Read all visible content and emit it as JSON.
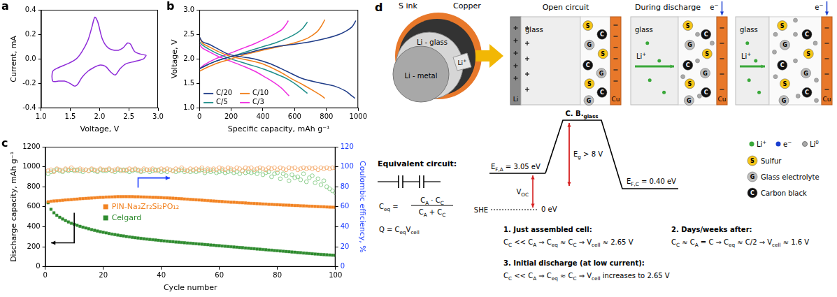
{
  "chart_data": [
    {
      "panel": "a",
      "type": "line",
      "xlabel": "Voltage, V",
      "ylabel": "Current, mA",
      "xlim": [
        1,
        3
      ],
      "ylim": [
        -0.4,
        0.4
      ],
      "xticks": [
        {
          "value": 1,
          "label": "1.0"
        },
        1.5,
        {
          "value": 2,
          "label": "2.0"
        },
        2.5,
        {
          "value": 3,
          "label": "3.0"
        }
      ],
      "yticks": [
        -0.4,
        -0.2,
        {
          "value": 0,
          "label": "0.0"
        },
        0.2,
        0.4
      ],
      "grid": false,
      "series": [
        {
          "color": "#8e2bd8",
          "line_style": "solid",
          "marker": "none",
          "x": [
            2.8,
            2.75,
            2.6,
            2.45,
            2.35,
            2.27,
            2.2,
            2.1,
            2.0,
            1.9,
            1.8,
            1.7,
            1.62,
            1.57,
            1.5,
            1.4,
            1.3,
            1.2,
            1.2,
            1.3,
            1.45,
            1.6,
            1.7,
            1.8,
            1.87,
            1.92,
            1.97,
            2.05,
            2.15,
            2.3,
            2.4,
            2.48,
            2.53,
            2.6,
            2.7,
            2.8
          ],
          "values": [
            0.03,
            0.0,
            -0.02,
            -0.04,
            -0.08,
            -0.13,
            -0.11,
            -0.06,
            -0.05,
            -0.07,
            -0.1,
            -0.15,
            -0.21,
            -0.22,
            -0.2,
            -0.18,
            -0.18,
            -0.18,
            -0.1,
            -0.07,
            -0.04,
            0.0,
            0.06,
            0.15,
            0.26,
            0.34,
            0.3,
            0.16,
            0.09,
            0.07,
            0.09,
            0.13,
            0.12,
            0.06,
            0.04,
            0.03
          ]
        }
      ]
    },
    {
      "panel": "b",
      "type": "line",
      "xlabel": "Specific capacity, mAh g⁻¹",
      "ylabel": "Voltage, V",
      "xlim": [
        0,
        1000
      ],
      "ylim": [
        1,
        3
      ],
      "xticks": [
        0,
        200,
        400,
        600,
        800,
        1000
      ],
      "yticks": [
        {
          "value": 1,
          "label": "1.0"
        },
        1.5,
        {
          "value": 2,
          "label": "2.0"
        },
        2.5,
        {
          "value": 3,
          "label": "3.0"
        }
      ],
      "grid": false,
      "legend": "lower left",
      "series": [
        {
          "name": "C/20",
          "color": "#1f3c88",
          "line_style": "solid",
          "marker": "none",
          "x": [
            0,
            20,
            60,
            120,
            180,
            250,
            350,
            450,
            550,
            650,
            750,
            850,
            920,
            960,
            980,
            null,
            0,
            30,
            100,
            200,
            300,
            400,
            500,
            600,
            700,
            800,
            880,
            930,
            960,
            975,
            985
          ],
          "values": [
            2.45,
            2.35,
            2.3,
            2.2,
            2.1,
            2.05,
            2.0,
            1.9,
            1.75,
            1.6,
            1.52,
            1.45,
            1.35,
            1.25,
            1.2,
            null,
            1.8,
            1.85,
            1.95,
            2.05,
            2.12,
            2.2,
            2.26,
            2.3,
            2.35,
            2.42,
            2.5,
            2.58,
            2.65,
            2.72,
            2.78
          ]
        },
        {
          "name": "C/10",
          "color": "#f07f1a",
          "line_style": "solid",
          "marker": "none",
          "x": [
            0,
            20,
            60,
            120,
            200,
            300,
            400,
            500,
            580,
            650,
            720,
            770,
            790,
            null,
            0,
            30,
            100,
            200,
            300,
            400,
            500,
            600,
            680,
            740,
            770,
            790
          ],
          "values": [
            2.45,
            2.32,
            2.25,
            2.15,
            2.05,
            1.98,
            1.9,
            1.75,
            1.6,
            1.48,
            1.35,
            1.25,
            1.2,
            null,
            1.75,
            1.8,
            1.9,
            2.0,
            2.1,
            2.18,
            2.25,
            2.33,
            2.42,
            2.55,
            2.68,
            2.8
          ]
        },
        {
          "name": "C/5",
          "color": "#1f8f8a",
          "line_style": "solid",
          "marker": "none",
          "x": [
            0,
            20,
            60,
            120,
            200,
            300,
            400,
            480,
            550,
            610,
            650,
            680,
            null,
            0,
            30,
            100,
            200,
            300,
            400,
            480,
            550,
            610,
            650,
            680
          ],
          "values": [
            2.35,
            2.28,
            2.2,
            2.1,
            2.0,
            1.9,
            1.8,
            1.7,
            1.6,
            1.48,
            1.38,
            1.3,
            null,
            1.8,
            1.85,
            1.95,
            2.05,
            2.15,
            2.25,
            2.33,
            2.42,
            2.52,
            2.62,
            2.75
          ]
        },
        {
          "name": "C/3",
          "color": "#ee2ee0",
          "line_style": "solid",
          "marker": "none",
          "x": [
            0,
            20,
            60,
            120,
            200,
            280,
            350,
            420,
            480,
            520,
            550,
            565,
            null,
            0,
            30,
            100,
            180,
            260,
            340,
            420,
            480,
            520,
            545,
            560
          ],
          "values": [
            2.3,
            2.22,
            2.15,
            2.05,
            1.95,
            1.85,
            1.75,
            1.62,
            1.5,
            1.4,
            1.3,
            1.25,
            null,
            1.8,
            1.88,
            2.0,
            2.1,
            2.2,
            2.3,
            2.42,
            2.52,
            2.6,
            2.7,
            2.78
          ]
        }
      ]
    },
    {
      "panel": "c",
      "type": "scatter",
      "xlabel": "Cycle number",
      "ylabel": "Discharge capacity, mAh g⁻¹",
      "y2label": "Coulombic efficiency, %",
      "xlim": [
        0,
        100
      ],
      "ylim": [
        0,
        1200
      ],
      "y2lim": [
        0,
        120
      ],
      "xticks": [
        0,
        20,
        40,
        60,
        80,
        100
      ],
      "yticks": [
        0,
        200,
        400,
        600,
        800,
        1000,
        1200
      ],
      "y2ticks": [
        0,
        20,
        40,
        60,
        80,
        100,
        120
      ],
      "grid": false,
      "legend": "center",
      "x": [
        1,
        2,
        3,
        4,
        5,
        6,
        7,
        8,
        9,
        10,
        11,
        12,
        13,
        14,
        15,
        16,
        17,
        18,
        19,
        20,
        21,
        22,
        23,
        24,
        25,
        26,
        27,
        28,
        29,
        30,
        31,
        32,
        33,
        34,
        35,
        36,
        37,
        38,
        39,
        40,
        41,
        42,
        43,
        44,
        45,
        46,
        47,
        48,
        49,
        50,
        51,
        52,
        53,
        54,
        55,
        56,
        57,
        58,
        59,
        60,
        61,
        62,
        63,
        64,
        65,
        66,
        67,
        68,
        69,
        70,
        71,
        72,
        73,
        74,
        75,
        76,
        77,
        78,
        79,
        80,
        81,
        82,
        83,
        84,
        85,
        86,
        87,
        88,
        89,
        90,
        91,
        92,
        93,
        94,
        95,
        96,
        97,
        98,
        99,
        100
      ],
      "series": [
        {
          "name": "PIN-Na₃Zr₂Si₂PO₁₂",
          "color": "#f28322",
          "marker": "square",
          "values": [
            650,
            655,
            658,
            660,
            662,
            665,
            668,
            670,
            672,
            675,
            677,
            680,
            682,
            684,
            686,
            688,
            690,
            692,
            694,
            695,
            697,
            698,
            699,
            700,
            701,
            701,
            702,
            702,
            701,
            701,
            700,
            700,
            699,
            698,
            697,
            696,
            695,
            694,
            693,
            692,
            690,
            689,
            687,
            686,
            684,
            682,
            680,
            678,
            676,
            674,
            672,
            670,
            668,
            666,
            664,
            662,
            660,
            658,
            656,
            654,
            652,
            650,
            648,
            646,
            645,
            643,
            641,
            640,
            638,
            636,
            634,
            633,
            631,
            630,
            628,
            627,
            625,
            624,
            622,
            621,
            620,
            618,
            617,
            616,
            614,
            613,
            612,
            610,
            609,
            608,
            606,
            605,
            604,
            602,
            601,
            600,
            598,
            597,
            596,
            595
          ]
        },
        {
          "name": "Celgard",
          "color": "#2e8b2e",
          "marker": "square",
          "values": [
            640,
            575,
            540,
            515,
            495,
            478,
            462,
            448,
            435,
            425,
            415,
            405,
            396,
            388,
            380,
            372,
            365,
            358,
            351,
            345,
            339,
            333,
            327,
            322,
            317,
            312,
            308,
            303,
            299,
            295,
            291,
            287,
            284,
            280,
            277,
            274,
            271,
            268,
            265,
            262,
            259,
            256,
            253,
            251,
            248,
            246,
            243,
            241,
            238,
            236,
            233,
            231,
            228,
            226,
            223,
            221,
            218,
            216,
            213,
            211,
            208,
            206,
            203,
            201,
            198,
            196,
            193,
            191,
            188,
            186,
            183,
            181,
            178,
            176,
            173,
            171,
            168,
            166,
            163,
            161,
            158,
            156,
            153,
            151,
            148,
            146,
            143,
            141,
            138,
            136,
            133,
            131,
            128,
            126,
            124,
            122,
            120,
            118,
            116,
            115
          ]
        },
        {
          "color": "#f5b27a",
          "marker": "circle_open",
          "axis": "y2",
          "values": [
            96,
            97,
            95,
            98,
            97,
            96,
            98,
            97,
            99,
            97,
            96,
            98,
            97,
            97,
            96,
            98,
            97,
            96,
            98,
            97,
            97,
            98,
            96,
            97,
            98,
            97,
            96,
            97,
            98,
            97,
            98,
            97,
            96,
            98,
            97,
            97,
            98,
            96,
            97,
            98,
            97,
            98,
            97,
            96,
            98,
            97,
            99,
            97,
            96,
            98,
            97,
            98,
            97,
            99,
            96,
            98,
            97,
            98,
            97,
            99,
            98,
            97,
            99,
            98,
            97,
            99,
            98,
            96,
            99,
            98,
            99,
            97,
            98,
            99,
            98,
            97,
            99,
            98,
            99,
            97,
            99,
            98,
            97,
            99,
            98,
            99,
            97,
            98,
            99,
            98,
            99,
            98,
            99,
            97,
            99,
            98,
            99,
            98,
            99,
            99
          ]
        },
        {
          "color": "#8fcf8f",
          "marker": "circle_open",
          "axis": "y2",
          "values": [
            93,
            95,
            96,
            97,
            96,
            95,
            97,
            96,
            97,
            96,
            97,
            96,
            95,
            97,
            96,
            97,
            96,
            95,
            97,
            96,
            96,
            97,
            96,
            95,
            97,
            96,
            97,
            96,
            95,
            96,
            97,
            96,
            95,
            96,
            97,
            95,
            96,
            97,
            96,
            95,
            96,
            95,
            97,
            96,
            95,
            96,
            97,
            95,
            96,
            95,
            96,
            95,
            96,
            97,
            94,
            96,
            95,
            96,
            94,
            95,
            96,
            94,
            95,
            96,
            94,
            95,
            93,
            96,
            94,
            95,
            94,
            95,
            93,
            96,
            92,
            94,
            95,
            90,
            93,
            94,
            88,
            93,
            91,
            86,
            92,
            89,
            90,
            87,
            93,
            85,
            89,
            91,
            84,
            88,
            82,
            86,
            80,
            78,
            76,
            74
          ]
        }
      ]
    }
  ],
  "diagram": {
    "panel": "d",
    "cell": {
      "ink": "S ink",
      "current_collector": "Copper",
      "electrolyte": "Li - glass",
      "anode": "Li - metal",
      "ion": [
        "Li",
        {
          "sup": "+"
        }
      ]
    },
    "stages": {
      "open": "Open circuit",
      "discharge": "During discharge",
      "electrolyte": "glass",
      "anode": "Li",
      "cathode": "Cu",
      "ion": [
        "Li",
        {
          "sup": "+"
        }
      ],
      "electron": [
        "e",
        {
          "sup": "−"
        }
      ]
    },
    "circuit": {
      "title": "Equivalent circuit:",
      "lhs": [
        "C",
        {
          "sub": "eq"
        },
        " ="
      ],
      "numerator": [
        "C",
        {
          "sub": "A"
        },
        " · C",
        {
          "sub": "C"
        }
      ],
      "denominator": [
        "C",
        {
          "sub": "A"
        },
        " + C",
        {
          "sub": "C"
        }
      ],
      "charge": [
        "Q = C",
        {
          "sub": "eq"
        },
        "V",
        {
          "sub": "cell"
        }
      ]
    },
    "energy": {
      "band": [
        "C. B.",
        {
          "sub": "glass"
        }
      ],
      "anode_level": [
        "E",
        {
          "sub": "F,A"
        },
        " = 3.05 eV"
      ],
      "voltage": [
        "V",
        {
          "sub": "OC"
        }
      ],
      "reference": "SHE",
      "zero": "0 eV",
      "gap": [
        "E",
        {
          "sub": "g"
        },
        " > 8 V"
      ],
      "cathode_level": [
        "E",
        {
          "sub": "F,C"
        },
        " = 0.40 eV"
      ]
    },
    "legend": {
      "dots": [
        [
          "Li",
          {
            "sup": "+"
          }
        ],
        [
          "e",
          {
            "sup": "−"
          }
        ],
        [
          "Li",
          {
            "sup": "0"
          }
        ]
      ],
      "particles": [
        {
          "mark": "S",
          "label": "Sulfur"
        },
        {
          "mark": "G",
          "label": "Glass electrolyte"
        },
        {
          "mark": "C",
          "label": "Carbon black"
        }
      ]
    },
    "cases": [
      {
        "title": "1. Just assembled cell:",
        "text": [
          "C",
          {
            "sub": "C"
          },
          " << C",
          {
            "sub": "A"
          },
          " ⇒ C",
          {
            "sub": "eq"
          },
          " ≈ C",
          {
            "sub": "C"
          },
          " ⇒ V",
          {
            "sub": "cell"
          },
          " ≈ 2.65 V"
        ]
      },
      {
        "title": "2. Days/weeks after:",
        "text": [
          "C",
          {
            "sub": "C"
          },
          " ≈ C",
          {
            "sub": "A"
          },
          " = C ⇒ C",
          {
            "sub": "eq"
          },
          " ≈ C/2 ⇒ V",
          {
            "sub": "cell"
          },
          " ≈ 1.6 V"
        ]
      },
      {
        "title": "3. Initial discharge (at low current):",
        "text": [
          "C",
          {
            "sub": "C"
          },
          " << C",
          {
            "sub": "A"
          },
          " ⇒ C",
          {
            "sub": "eq"
          },
          " ≈ C",
          {
            "sub": "C"
          },
          " ⇒ V",
          {
            "sub": "cell"
          },
          " increases to 2.65 V"
        ]
      }
    ]
  }
}
